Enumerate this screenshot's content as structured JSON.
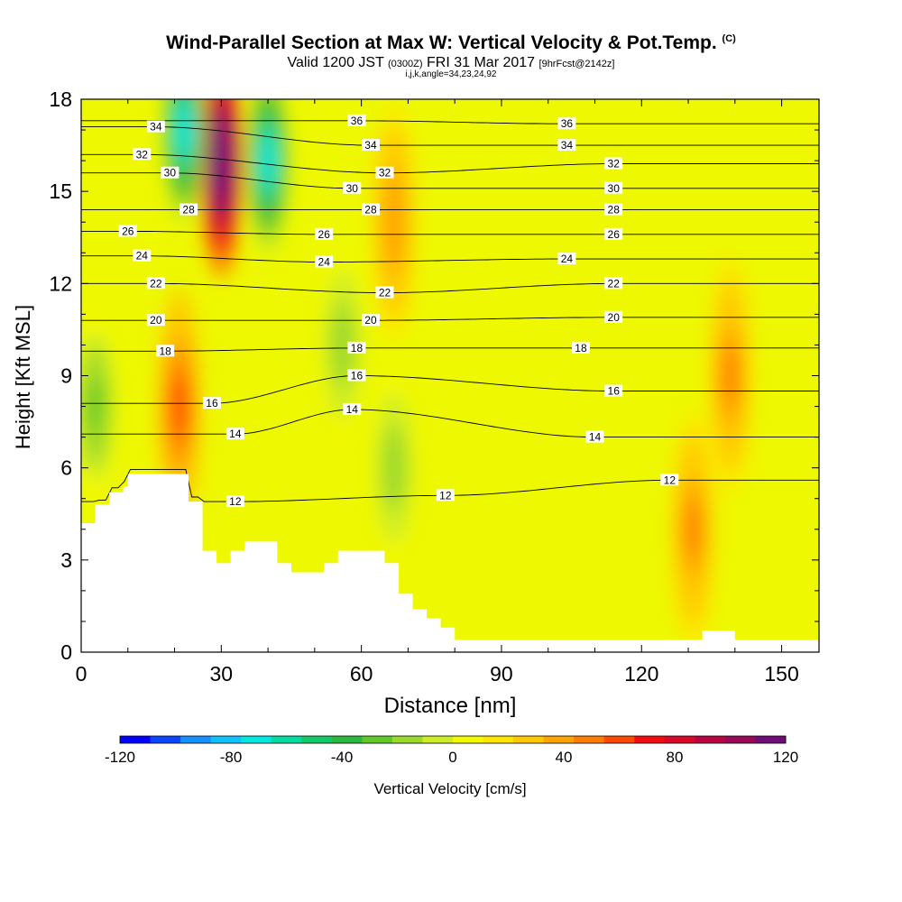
{
  "title": {
    "main": "Wind-Parallel Section at Max W: Vertical Velocity & Pot.Temp.",
    "copyright": "(C)",
    "valid_pre": "Valid 1200 JST",
    "valid_utc": "(0300Z)",
    "valid_post": "FRI 31 Mar 2017",
    "forecast": "[9hrFcst@2142z]",
    "params": "i,j,k,angle=34,23,24,92"
  },
  "colors": {
    "bands": [
      "#0000ff",
      "#0a46ff",
      "#1690ff",
      "#10c0ff",
      "#00e8e0",
      "#00dca0",
      "#14c868",
      "#2cb840",
      "#60c828",
      "#9ad82c",
      "#ccec28",
      "#f4fa00",
      "#ffe400",
      "#ffc800",
      "#ffa400",
      "#ff7c00",
      "#ff4800",
      "#f00c10",
      "#d80828",
      "#b80440",
      "#980858",
      "#700c78"
    ],
    "terrain": "#ffffff",
    "contour": "#000000"
  },
  "chart_data": {
    "type": "heatmap",
    "xlabel": "Distance [nm]",
    "ylabel": "Height [Kft MSL]",
    "xlim": [
      0,
      158
    ],
    "ylim": [
      0,
      18
    ],
    "xticks": [
      0,
      30,
      60,
      90,
      120,
      150
    ],
    "yticks": [
      0,
      3,
      6,
      9,
      12,
      15,
      18
    ],
    "colorbar": {
      "label": "Vertical Velocity [cm/s]",
      "min": -120,
      "max": 120,
      "step": 10,
      "ticks": [
        -120,
        -80,
        -40,
        0,
        40,
        80,
        120
      ]
    },
    "terrain_profile": {
      "x": [
        0,
        3,
        3,
        6,
        6,
        9,
        9,
        10,
        10,
        18,
        18,
        20,
        20,
        23,
        23,
        26,
        26,
        29,
        29,
        32,
        32,
        35,
        35,
        39,
        39,
        42,
        42,
        45,
        45,
        48,
        48,
        52,
        52,
        55,
        55,
        60,
        60,
        65,
        65,
        68,
        68,
        71,
        71,
        74,
        74,
        77,
        77,
        80,
        80,
        84,
        84,
        133,
        133,
        140,
        140,
        158
      ],
      "y": [
        4.2,
        4.2,
        4.8,
        4.8,
        5.2,
        5.2,
        5.4,
        5.4,
        5.8,
        5.8,
        5.8,
        5.8,
        5.8,
        5.8,
        4.9,
        4.9,
        3.3,
        3.3,
        2.9,
        2.9,
        3.3,
        3.3,
        3.6,
        3.6,
        3.6,
        3.6,
        2.9,
        2.9,
        2.6,
        2.6,
        2.6,
        2.6,
        2.9,
        2.9,
        3.3,
        3.3,
        3.3,
        3.3,
        2.9,
        2.9,
        1.9,
        1.9,
        1.4,
        1.4,
        1.1,
        1.1,
        0.8,
        0.8,
        0.4,
        0.4,
        0.4,
        0.4,
        0.7,
        0.7,
        0.4,
        0.4
      ]
    },
    "updraft_cores": [
      {
        "x": 30,
        "y": 16.0,
        "w": 120
      },
      {
        "x": 21,
        "y": 8.0,
        "w": 40
      },
      {
        "x": 139,
        "y": 9.0,
        "w": 30
      },
      {
        "x": 131,
        "y": 4.0,
        "w": 30
      },
      {
        "x": 67,
        "y": 14.0,
        "w": 25
      }
    ],
    "downdraft_cores": [
      {
        "x": 22,
        "y": 17.0,
        "w": -80
      },
      {
        "x": 40,
        "y": 16.0,
        "w": -80
      },
      {
        "x": 3,
        "y": 8.0,
        "w": -35
      },
      {
        "x": 56,
        "y": 10.0,
        "w": -30
      },
      {
        "x": 67,
        "y": 6.0,
        "w": -30
      }
    ],
    "potential_temperature": {
      "levels": [
        12,
        14,
        16,
        18,
        20,
        22,
        24,
        26,
        28,
        30,
        32,
        34,
        36
      ],
      "labels": [
        {
          "text": "12",
          "x": 33,
          "y": 4.9
        },
        {
          "text": "12",
          "x": 78,
          "y": 5.1
        },
        {
          "text": "12",
          "x": 126,
          "y": 5.6
        },
        {
          "text": "14",
          "x": 33,
          "y": 7.1
        },
        {
          "text": "14",
          "x": 58,
          "y": 7.9
        },
        {
          "text": "14",
          "x": 110,
          "y": 7.0
        },
        {
          "text": "16",
          "x": 28,
          "y": 8.1
        },
        {
          "text": "16",
          "x": 59,
          "y": 9.0
        },
        {
          "text": "16",
          "x": 114,
          "y": 8.5
        },
        {
          "text": "18",
          "x": 18,
          "y": 9.8
        },
        {
          "text": "18",
          "x": 59,
          "y": 9.9
        },
        {
          "text": "18",
          "x": 107,
          "y": 9.9
        },
        {
          "text": "20",
          "x": 16,
          "y": 10.8
        },
        {
          "text": "20",
          "x": 62,
          "y": 10.8
        },
        {
          "text": "20",
          "x": 114,
          "y": 10.9
        },
        {
          "text": "22",
          "x": 16,
          "y": 12.0
        },
        {
          "text": "22",
          "x": 65,
          "y": 11.7
        },
        {
          "text": "22",
          "x": 114,
          "y": 12.0
        },
        {
          "text": "24",
          "x": 13,
          "y": 12.9
        },
        {
          "text": "24",
          "x": 52,
          "y": 12.7
        },
        {
          "text": "24",
          "x": 104,
          "y": 12.8
        },
        {
          "text": "26",
          "x": 10,
          "y": 13.7
        },
        {
          "text": "26",
          "x": 52,
          "y": 13.6
        },
        {
          "text": "26",
          "x": 114,
          "y": 13.6
        },
        {
          "text": "28",
          "x": 23,
          "y": 14.4
        },
        {
          "text": "28",
          "x": 62,
          "y": 14.4
        },
        {
          "text": "28",
          "x": 114,
          "y": 14.4
        },
        {
          "text": "30",
          "x": 19,
          "y": 15.6
        },
        {
          "text": "30",
          "x": 58,
          "y": 15.1
        },
        {
          "text": "30",
          "x": 114,
          "y": 15.1
        },
        {
          "text": "32",
          "x": 13,
          "y": 16.2
        },
        {
          "text": "32",
          "x": 65,
          "y": 15.6
        },
        {
          "text": "32",
          "x": 114,
          "y": 15.9
        },
        {
          "text": "34",
          "x": 16,
          "y": 17.1
        },
        {
          "text": "34",
          "x": 62,
          "y": 16.5
        },
        {
          "text": "34",
          "x": 104,
          "y": 16.5
        },
        {
          "text": "36",
          "x": 59,
          "y": 17.3
        },
        {
          "text": "36",
          "x": 104,
          "y": 17.2
        }
      ]
    }
  }
}
